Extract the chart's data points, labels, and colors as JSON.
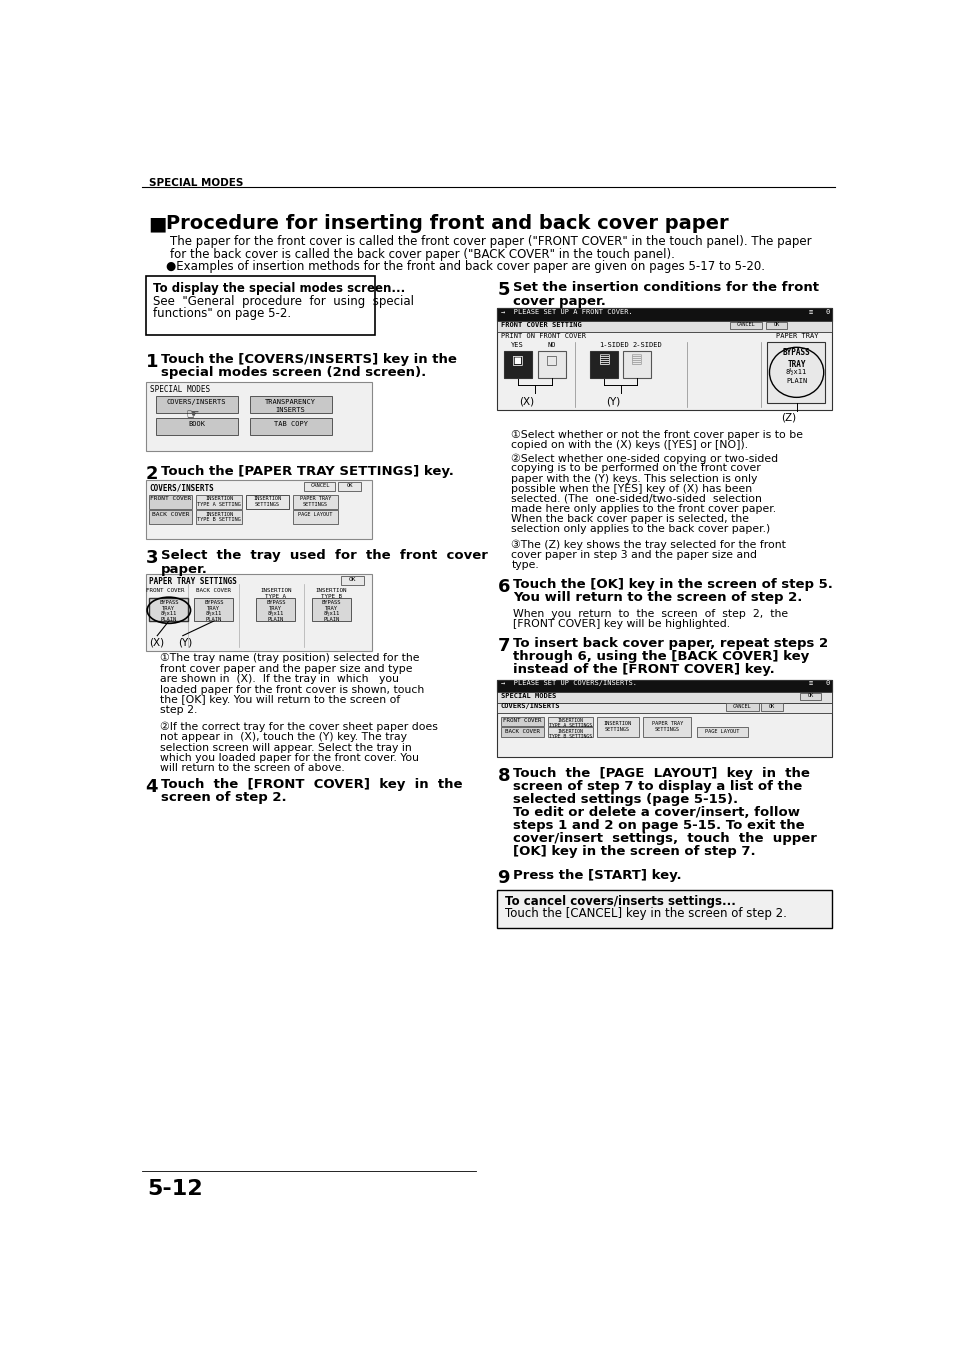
{
  "bg_color": "#ffffff",
  "header_text": "SPECIAL MODES",
  "title": "Procedure for inserting front and back cover paper",
  "intro_line1": "The paper for the front cover is called the front cover paper (\"FRONT COVER\" in the touch panel). The paper",
  "intro_line2": "for the back cover is called the back cover paper (\"BACK COVER\" in the touch panel).",
  "intro_line3": "●Examples of insertion methods for the front and back cover paper are given on pages 5-17 to 5-20.",
  "box1_title": "To display the special modes screen...",
  "box1_text1": "See  \"General  procedure  for  using  special",
  "box1_text2": "functions\" on page 5-2.",
  "step1_line1": "Touch the [COVERS/INSERTS] key in the",
  "step1_line2": "special modes screen (2nd screen).",
  "step2_text": "Touch the [PAPER TRAY SETTINGS] key.",
  "step3_line1": "Select  the  tray  used  for  the  front  cover",
  "step3_line2": "paper.",
  "step3_note1_lines": [
    "①The tray name (tray position) selected for the",
    "front cover paper and the paper size and type",
    "are shown in  (X).  If the tray in  which   you",
    "loaded paper for the front cover is shown, touch",
    "the [OK] key. You will return to the screen of",
    "step 2."
  ],
  "step3_note2_lines": [
    "②If the correct tray for the cover sheet paper does",
    "not appear in  (X), touch the (Y) key. The tray",
    "selection screen will appear. Select the tray in",
    "which you loaded paper for the front cover. You",
    "will return to the screen of above."
  ],
  "step4_line1": "Touch  the  [FRONT  COVER]  key  in  the",
  "step4_line2": "screen of step 2.",
  "step5_line1": "Set the insertion conditions for the front",
  "step5_line2": "cover paper.",
  "step5_note1_lines": [
    "①Select whether or not the front cover paper is to be",
    "copied on with the (X) keys ([YES] or [NO])."
  ],
  "step5_note2_lines": [
    "②Select whether one-sided copying or two-sided",
    "copying is to be performed on the front cover",
    "paper with the (Y) keys. This selection is only",
    "possible when the [YES] key of (X) has been",
    "selected. (The  one-sided/two-sided  selection",
    "made here only applies to the front cover paper.",
    "When the back cover paper is selected, the",
    "selection only applies to the back cover paper.)"
  ],
  "step5_note3_lines": [
    "③The (Z) key shows the tray selected for the front",
    "cover paper in step 3 and the paper size and",
    "type."
  ],
  "step6_line1": "Touch the [OK] key in the screen of step 5.",
  "step6_line2": "You will return to the screen of step 2.",
  "step6_body1": "When  you  return  to  the  screen  of  step  2,  the",
  "step6_body2": "[FRONT COVER] key will be highlighted.",
  "step7_line1": "To insert back cover paper, repeat steps 2",
  "step7_line2": "through 6, using the [BACK COVER] key",
  "step7_line3": "instead of the [FRONT COVER] key.",
  "step8_line1": "Touch  the  [PAGE  LAYOUT]  key  in  the",
  "step8_line2": "screen of step 7 to display a list of the",
  "step8_line3": "selected settings (page 5-15).",
  "step8_line4": "To edit or delete a cover/insert, follow",
  "step8_line5": "steps 1 and 2 on page 5-15. To exit the",
  "step8_line6": "cover/insert  settings,  touch  the  upper",
  "step8_line7": "[OK] key in the screen of step 7.",
  "step9_text": "Press the [START] key.",
  "box2_title": "To cancel covers/inserts settings...",
  "box2_text": "Touch the [CANCEL] key in the screen of step 2.",
  "footer": "5-12"
}
